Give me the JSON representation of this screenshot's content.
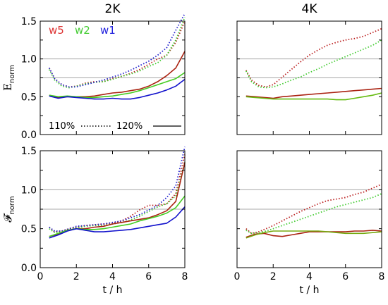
{
  "chart_data": [
    {
      "type": "line",
      "id": "E_2K",
      "column_title": "2K",
      "ylabel": "E",
      "ylabel_sub": "norm",
      "xlim": [
        0,
        8
      ],
      "ylim": [
        0,
        1.5
      ],
      "xticks": [
        "0",
        "2",
        "4",
        "6",
        "8"
      ],
      "xtick_values": [
        0,
        2,
        4,
        6,
        8
      ],
      "yticks": [
        "0.0",
        "0.5",
        "1.0",
        "1.5"
      ],
      "ytick_values": [
        0,
        0.5,
        1.0,
        1.5
      ],
      "show_xlabel": false,
      "gridlines_y": [
        1.0,
        0.75
      ],
      "legend": {
        "series_names": [
          {
            "text": "w5",
            "color": "#dd3333"
          },
          {
            "text": "w2",
            "color": "#44cc33"
          },
          {
            "text": "w1",
            "color": "#2222dd"
          }
        ],
        "style_labels": [
          "110%",
          "120%"
        ]
      },
      "series": [
        {
          "name": "w5",
          "style": "dotted",
          "color": "#bb2222",
          "x": [
            0.5,
            0.8,
            1.2,
            1.6,
            2.0,
            2.5,
            3.0,
            3.5,
            4.0,
            4.5,
            5.0,
            5.5,
            6.0,
            6.5,
            7.0,
            7.5,
            8.0
          ],
          "values": [
            0.88,
            0.74,
            0.66,
            0.63,
            0.64,
            0.68,
            0.7,
            0.7,
            0.74,
            0.77,
            0.81,
            0.86,
            0.93,
            1.0,
            1.05,
            1.22,
            1.5
          ]
        },
        {
          "name": "w2",
          "style": "dotted",
          "color": "#44cc33",
          "x": [
            0.5,
            0.8,
            1.2,
            1.6,
            2.0,
            2.5,
            3.0,
            3.5,
            4.0,
            4.5,
            5.0,
            5.5,
            6.0,
            6.5,
            7.0,
            7.5,
            8.0
          ],
          "values": [
            0.86,
            0.72,
            0.64,
            0.62,
            0.64,
            0.67,
            0.69,
            0.7,
            0.73,
            0.77,
            0.8,
            0.84,
            0.9,
            0.95,
            1.05,
            1.25,
            1.55
          ]
        },
        {
          "name": "w1",
          "style": "dotted",
          "color": "#2222cc",
          "x": [
            0.5,
            0.8,
            1.2,
            1.6,
            2.0,
            2.5,
            3.0,
            3.5,
            4.0,
            4.5,
            5.0,
            5.5,
            6.0,
            6.5,
            7.0,
            7.5,
            8.0
          ],
          "values": [
            0.88,
            0.74,
            0.66,
            0.63,
            0.63,
            0.66,
            0.69,
            0.72,
            0.76,
            0.8,
            0.85,
            0.91,
            0.97,
            1.05,
            1.15,
            1.38,
            1.6
          ]
        },
        {
          "name": "w5",
          "style": "solid",
          "color": "#aa2211",
          "x": [
            0.5,
            1.0,
            1.5,
            2.0,
            2.5,
            3.0,
            3.5,
            4.0,
            4.5,
            5.0,
            5.5,
            6.0,
            6.5,
            7.0,
            7.5,
            8.0
          ],
          "values": [
            0.52,
            0.49,
            0.5,
            0.5,
            0.5,
            0.51,
            0.53,
            0.55,
            0.56,
            0.58,
            0.6,
            0.64,
            0.7,
            0.78,
            0.88,
            1.1
          ]
        },
        {
          "name": "w2",
          "style": "solid",
          "color": "#44cc22",
          "x": [
            0.5,
            1.0,
            1.5,
            2.0,
            2.5,
            3.0,
            3.5,
            4.0,
            4.5,
            5.0,
            5.5,
            6.0,
            6.5,
            7.0,
            7.5,
            8.0
          ],
          "values": [
            0.52,
            0.5,
            0.51,
            0.5,
            0.49,
            0.49,
            0.5,
            0.51,
            0.53,
            0.55,
            0.58,
            0.62,
            0.66,
            0.7,
            0.74,
            0.82
          ]
        },
        {
          "name": "w1",
          "style": "solid",
          "color": "#1111cc",
          "x": [
            0.5,
            1.0,
            1.5,
            2.0,
            2.5,
            3.0,
            3.5,
            4.0,
            4.5,
            5.0,
            5.5,
            6.0,
            6.5,
            7.0,
            7.5,
            8.0
          ],
          "values": [
            0.51,
            0.48,
            0.5,
            0.49,
            0.48,
            0.47,
            0.47,
            0.48,
            0.47,
            0.47,
            0.49,
            0.52,
            0.55,
            0.59,
            0.64,
            0.73
          ]
        }
      ]
    },
    {
      "type": "line",
      "id": "E_4K",
      "column_title": "4K",
      "xlim": [
        0,
        8
      ],
      "ylim": [
        0,
        1.5
      ],
      "xticks": [
        "0",
        "2",
        "4",
        "6",
        "8"
      ],
      "xtick_values": [
        0,
        2,
        4,
        6,
        8
      ],
      "yticks": [],
      "ytick_values": [],
      "show_xlabel": false,
      "gridlines_y": [
        1.0,
        0.75
      ],
      "series": [
        {
          "name": "w5",
          "style": "dotted",
          "color": "#bb2222",
          "x": [
            0.5,
            0.8,
            1.2,
            1.6,
            2.0,
            2.5,
            3.0,
            3.5,
            4.0,
            4.5,
            5.0,
            5.5,
            6.0,
            6.5,
            7.0,
            7.5,
            8.0
          ],
          "values": [
            0.85,
            0.72,
            0.65,
            0.63,
            0.66,
            0.76,
            0.86,
            0.96,
            1.05,
            1.12,
            1.18,
            1.22,
            1.25,
            1.27,
            1.3,
            1.35,
            1.4
          ]
        },
        {
          "name": "w2",
          "style": "dotted",
          "color": "#44cc33",
          "x": [
            0.5,
            0.8,
            1.2,
            1.6,
            2.0,
            2.5,
            3.0,
            3.5,
            4.0,
            4.5,
            5.0,
            5.5,
            6.0,
            6.5,
            7.0,
            7.5,
            8.0
          ],
          "values": [
            0.84,
            0.7,
            0.63,
            0.62,
            0.63,
            0.67,
            0.72,
            0.76,
            0.82,
            0.87,
            0.93,
            0.98,
            1.03,
            1.08,
            1.13,
            1.18,
            1.25
          ]
        },
        {
          "name": "w5",
          "style": "solid",
          "color": "#aa2211",
          "x": [
            0.5,
            1.0,
            1.5,
            2.0,
            2.5,
            3.0,
            3.5,
            4.0,
            4.5,
            5.0,
            5.5,
            6.0,
            6.5,
            7.0,
            7.5,
            8.0
          ],
          "values": [
            0.51,
            0.5,
            0.49,
            0.48,
            0.5,
            0.51,
            0.52,
            0.53,
            0.54,
            0.55,
            0.56,
            0.57,
            0.58,
            0.59,
            0.6,
            0.61
          ]
        },
        {
          "name": "w2",
          "style": "solid",
          "color": "#66bb11",
          "x": [
            0.5,
            1.0,
            1.5,
            2.0,
            2.5,
            3.0,
            3.5,
            4.0,
            4.5,
            5.0,
            5.5,
            6.0,
            6.5,
            7.0,
            7.5,
            8.0
          ],
          "values": [
            0.5,
            0.49,
            0.48,
            0.47,
            0.47,
            0.47,
            0.47,
            0.47,
            0.47,
            0.47,
            0.46,
            0.46,
            0.48,
            0.5,
            0.52,
            0.55
          ]
        }
      ]
    },
    {
      "type": "line",
      "id": "F_2K",
      "ylabel": "𝓕",
      "ylabel_sub": "norm",
      "xlim": [
        0,
        8
      ],
      "ylim": [
        0,
        1.5
      ],
      "xticks": [
        "0",
        "2",
        "4",
        "6",
        "8"
      ],
      "xtick_values": [
        0,
        2,
        4,
        6,
        8
      ],
      "yticks": [
        "0.0",
        "0.5",
        "1.0",
        "1.5"
      ],
      "ytick_values": [
        0,
        0.5,
        1.0,
        1.5
      ],
      "show_xlabel": true,
      "xlabel": "t / h",
      "gridlines_y": [
        1.0,
        0.75
      ],
      "series": [
        {
          "name": "w5",
          "style": "dotted",
          "color": "#bb2222",
          "x": [
            0.5,
            0.8,
            1.2,
            1.6,
            2.0,
            2.5,
            3.0,
            3.5,
            4.0,
            4.5,
            5.0,
            5.5,
            6.0,
            6.5,
            7.0,
            7.5,
            8.0
          ],
          "values": [
            0.52,
            0.46,
            0.47,
            0.5,
            0.52,
            0.54,
            0.55,
            0.56,
            0.57,
            0.6,
            0.66,
            0.74,
            0.8,
            0.8,
            0.82,
            0.95,
            1.45
          ]
        },
        {
          "name": "w2",
          "style": "dotted",
          "color": "#44cc33",
          "x": [
            0.5,
            0.8,
            1.2,
            1.6,
            2.0,
            2.5,
            3.0,
            3.5,
            4.0,
            4.5,
            5.0,
            5.5,
            6.0,
            6.5,
            7.0,
            7.5,
            8.0
          ],
          "values": [
            0.5,
            0.45,
            0.46,
            0.49,
            0.51,
            0.53,
            0.54,
            0.54,
            0.56,
            0.58,
            0.61,
            0.66,
            0.72,
            0.78,
            0.82,
            0.92,
            1.35
          ]
        },
        {
          "name": "w1",
          "style": "dotted",
          "color": "#2222cc",
          "x": [
            0.5,
            0.8,
            1.2,
            1.6,
            2.0,
            2.5,
            3.0,
            3.5,
            4.0,
            4.5,
            5.0,
            5.5,
            6.0,
            6.5,
            7.0,
            7.5,
            8.0
          ],
          "values": [
            0.52,
            0.47,
            0.47,
            0.5,
            0.53,
            0.54,
            0.55,
            0.56,
            0.58,
            0.6,
            0.64,
            0.68,
            0.74,
            0.8,
            0.9,
            1.05,
            1.55
          ]
        },
        {
          "name": "w5",
          "style": "solid",
          "color": "#aa2211",
          "x": [
            0.5,
            1.0,
            1.5,
            2.0,
            2.5,
            3.0,
            3.5,
            4.0,
            4.5,
            5.0,
            5.5,
            6.0,
            6.5,
            7.0,
            7.5,
            8.0
          ],
          "values": [
            0.4,
            0.43,
            0.48,
            0.5,
            0.5,
            0.52,
            0.53,
            0.56,
            0.58,
            0.6,
            0.62,
            0.64,
            0.68,
            0.73,
            0.85,
            1.35
          ]
        },
        {
          "name": "w2",
          "style": "solid",
          "color": "#44cc22",
          "x": [
            0.5,
            1.0,
            1.5,
            2.0,
            2.5,
            3.0,
            3.5,
            4.0,
            4.5,
            5.0,
            5.5,
            6.0,
            6.5,
            7.0,
            7.5,
            8.0
          ],
          "values": [
            0.4,
            0.44,
            0.48,
            0.5,
            0.49,
            0.49,
            0.5,
            0.52,
            0.54,
            0.56,
            0.6,
            0.63,
            0.66,
            0.7,
            0.77,
            0.92
          ]
        },
        {
          "name": "w1",
          "style": "solid",
          "color": "#1111cc",
          "x": [
            0.5,
            1.0,
            1.5,
            2.0,
            2.5,
            3.0,
            3.5,
            4.0,
            4.5,
            5.0,
            5.5,
            6.0,
            6.5,
            7.0,
            7.5,
            8.0
          ],
          "values": [
            0.38,
            0.42,
            0.47,
            0.5,
            0.48,
            0.46,
            0.46,
            0.47,
            0.48,
            0.49,
            0.51,
            0.53,
            0.55,
            0.57,
            0.65,
            0.78
          ]
        }
      ]
    },
    {
      "type": "line",
      "id": "F_4K",
      "xlim": [
        0,
        8
      ],
      "ylim": [
        0,
        1.5
      ],
      "xticks": [
        "0",
        "2",
        "4",
        "6",
        "8"
      ],
      "xtick_values": [
        0,
        2,
        4,
        6,
        8
      ],
      "yticks": [],
      "ytick_values": [],
      "show_xlabel": true,
      "xlabel": "t / h",
      "gridlines_y": [
        1.0,
        0.75
      ],
      "series": [
        {
          "name": "w5",
          "style": "dotted",
          "color": "#bb2222",
          "x": [
            0.5,
            0.8,
            1.2,
            1.6,
            2.0,
            2.5,
            3.0,
            3.5,
            4.0,
            4.5,
            5.0,
            5.5,
            6.0,
            6.5,
            7.0,
            7.5,
            8.0
          ],
          "values": [
            0.5,
            0.44,
            0.46,
            0.5,
            0.54,
            0.6,
            0.66,
            0.72,
            0.77,
            0.82,
            0.86,
            0.88,
            0.9,
            0.94,
            0.97,
            1.02,
            1.07
          ]
        },
        {
          "name": "w2",
          "style": "dotted",
          "color": "#44cc33",
          "x": [
            0.5,
            0.8,
            1.2,
            1.6,
            2.0,
            2.5,
            3.0,
            3.5,
            4.0,
            4.5,
            5.0,
            5.5,
            6.0,
            6.5,
            7.0,
            7.5,
            8.0
          ],
          "values": [
            0.48,
            0.44,
            0.45,
            0.47,
            0.5,
            0.54,
            0.58,
            0.62,
            0.66,
            0.7,
            0.74,
            0.78,
            0.81,
            0.84,
            0.87,
            0.9,
            0.95
          ]
        },
        {
          "name": "w5",
          "style": "solid",
          "color": "#aa2211",
          "x": [
            0.5,
            1.0,
            1.5,
            2.0,
            2.5,
            3.0,
            3.5,
            4.0,
            4.5,
            5.0,
            5.5,
            6.0,
            6.5,
            7.0,
            7.5,
            8.0
          ],
          "values": [
            0.39,
            0.43,
            0.44,
            0.41,
            0.4,
            0.42,
            0.44,
            0.46,
            0.46,
            0.46,
            0.46,
            0.46,
            0.47,
            0.47,
            0.48,
            0.47
          ]
        },
        {
          "name": "w2",
          "style": "solid",
          "color": "#77aa11",
          "x": [
            0.5,
            1.0,
            1.5,
            2.0,
            2.5,
            3.0,
            3.5,
            4.0,
            4.5,
            5.0,
            5.5,
            6.0,
            6.5,
            7.0,
            7.5,
            8.0
          ],
          "values": [
            0.38,
            0.42,
            0.45,
            0.47,
            0.47,
            0.47,
            0.47,
            0.47,
            0.47,
            0.46,
            0.45,
            0.44,
            0.44,
            0.44,
            0.45,
            0.46
          ]
        }
      ]
    }
  ]
}
